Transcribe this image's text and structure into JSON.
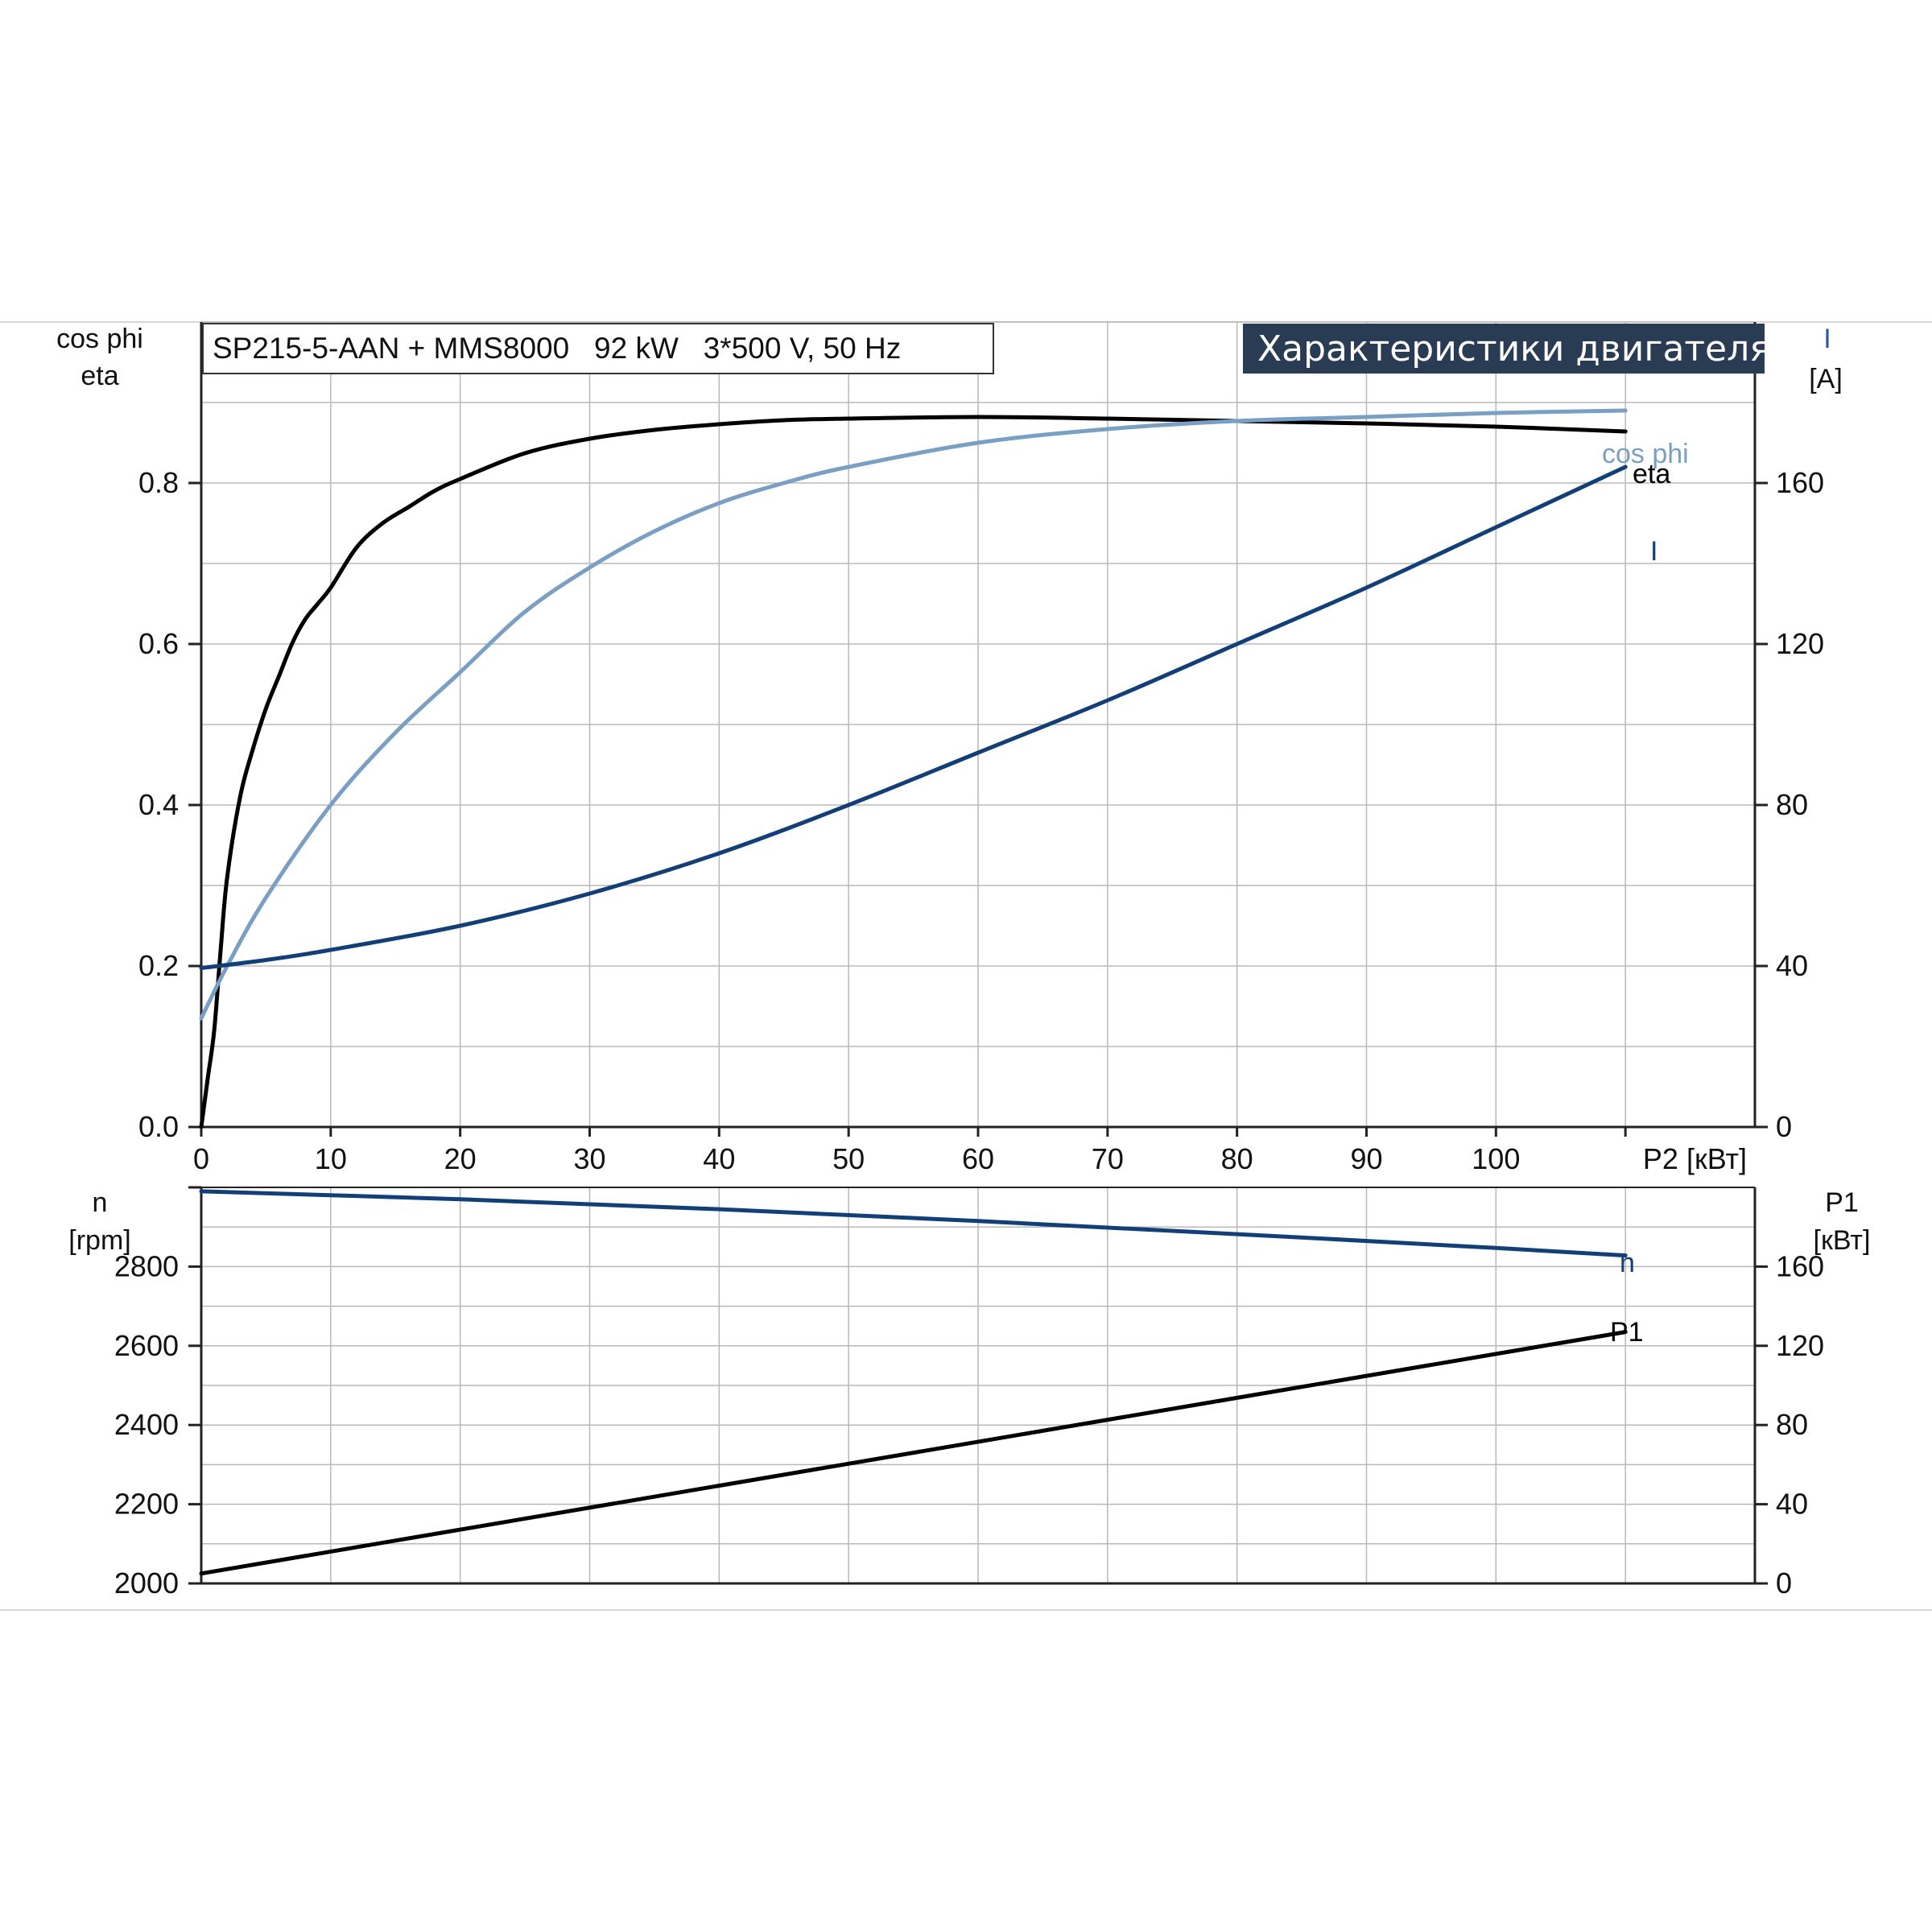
{
  "header": {
    "model_text": "SP215-5-AAN + MMS8000   92 kW   3*500 V, 50 Hz",
    "banner": "Характеристики двигателя"
  },
  "colors": {
    "eta": "#000000",
    "cos_phi": "#7a9fc4",
    "current": "#123f78",
    "speed": "#123f78",
    "p1": "#000000",
    "grid": "#b8b8b8",
    "banner_bg": "#2a3b54"
  },
  "chart_data": [
    {
      "type": "line",
      "name": "upper",
      "xlabel": "P2 [кВт]",
      "ylabel_left": [
        "cos phi",
        "eta"
      ],
      "ylabel_right": [
        "I",
        "[A]"
      ],
      "x_ticks": [
        "0",
        "10",
        "20",
        "30",
        "40",
        "50",
        "60",
        "70",
        "80",
        "90",
        "100"
      ],
      "y_left_ticks": [
        "0.0",
        "0.2",
        "0.4",
        "0.6",
        "0.8"
      ],
      "y_right_ticks": [
        "0",
        "40",
        "80",
        "120",
        "160"
      ],
      "xlim": [
        0,
        120
      ],
      "ylim_left": [
        0,
        1.0
      ],
      "ylim_right": [
        0,
        200
      ],
      "grid": true,
      "series": [
        {
          "name": "eta",
          "axis": "left",
          "color_key": "eta",
          "x": [
            0,
            0.5,
            1,
            1.5,
            2,
            3,
            4,
            5,
            6,
            7,
            8,
            9,
            10,
            12,
            14,
            16,
            18,
            20,
            25,
            30,
            35,
            40,
            45,
            50,
            60,
            70,
            80,
            90,
            100,
            110
          ],
          "y": [
            0,
            0.06,
            0.12,
            0.22,
            0.31,
            0.41,
            0.47,
            0.52,
            0.56,
            0.6,
            0.63,
            0.65,
            0.67,
            0.72,
            0.75,
            0.77,
            0.79,
            0.805,
            0.837,
            0.855,
            0.866,
            0.873,
            0.878,
            0.88,
            0.882,
            0.88,
            0.877,
            0.874,
            0.87,
            0.864
          ]
        },
        {
          "name": "cos phi",
          "axis": "left",
          "color_key": "cos_phi",
          "x": [
            0,
            2,
            5,
            10,
            15,
            20,
            25,
            30,
            35,
            40,
            45,
            50,
            60,
            70,
            80,
            90,
            100,
            110
          ],
          "y": [
            0.135,
            0.2,
            0.285,
            0.4,
            0.49,
            0.565,
            0.64,
            0.695,
            0.74,
            0.775,
            0.8,
            0.82,
            0.85,
            0.867,
            0.877,
            0.882,
            0.887,
            0.89
          ]
        },
        {
          "name": "I",
          "axis": "right",
          "color_key": "current",
          "x": [
            0,
            5,
            10,
            20,
            30,
            40,
            50,
            60,
            70,
            80,
            90,
            100,
            110
          ],
          "y": [
            39.5,
            41.5,
            44,
            50,
            58,
            68,
            80,
            93,
            106,
            120,
            134,
            149,
            164
          ]
        }
      ]
    },
    {
      "type": "line",
      "name": "lower",
      "xlabel": "",
      "ylabel_left": [
        "n",
        "[rpm]"
      ],
      "ylabel_right": [
        "P1",
        "[кВт]"
      ],
      "y_left_ticks": [
        "2000",
        "2200",
        "2400",
        "2600",
        "2800"
      ],
      "y_right_ticks": [
        "0",
        "40",
        "80",
        "120",
        "160"
      ],
      "xlim": [
        0,
        120
      ],
      "ylim_left": [
        2000,
        3000
      ],
      "ylim_right": [
        0,
        200
      ],
      "grid": true,
      "series": [
        {
          "name": "n",
          "axis": "left",
          "color_key": "speed",
          "x": [
            0,
            20,
            40,
            60,
            80,
            100,
            110
          ],
          "y": [
            2990,
            2970,
            2945,
            2915,
            2882,
            2847,
            2828
          ]
        },
        {
          "name": "P1",
          "axis": "right",
          "color_key": "p1",
          "x": [
            0,
            110
          ],
          "y": [
            5,
            127
          ]
        }
      ]
    }
  ]
}
